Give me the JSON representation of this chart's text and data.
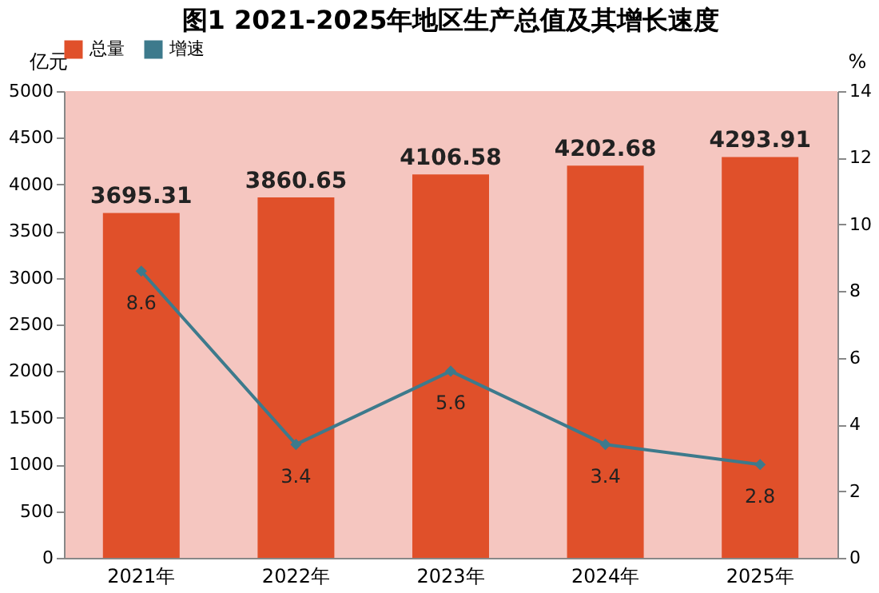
{
  "chart_data": {
    "type": "bar",
    "title": "图1  2021-2025年地区生产总值及其增长速度",
    "ylabel": "亿元",
    "y2label": "%",
    "categories": [
      "2021年",
      "2022年",
      "2023年",
      "2024年",
      "2025年"
    ],
    "series": [
      {
        "name": "总量",
        "color": "#e0502a",
        "values": [
          3695.31,
          3860.65,
          4106.58,
          4202.68,
          4293.91
        ]
      },
      {
        "name": "增速",
        "type": "line",
        "axis": "y2",
        "color": "#3d7a8c",
        "marker": "diamond",
        "values": [
          8.6,
          3.4,
          5.6,
          3.4,
          2.8
        ]
      }
    ],
    "ylim": [
      0,
      5000
    ],
    "yticks": [
      0,
      500,
      1000,
      1500,
      2000,
      2500,
      3000,
      3500,
      4000,
      4500,
      5000
    ],
    "y2lim": [
      0,
      14
    ],
    "y2ticks": [
      0,
      2,
      4,
      6,
      8,
      10,
      12,
      14
    ],
    "data_labels": true,
    "legend": "top",
    "grid": false
  }
}
